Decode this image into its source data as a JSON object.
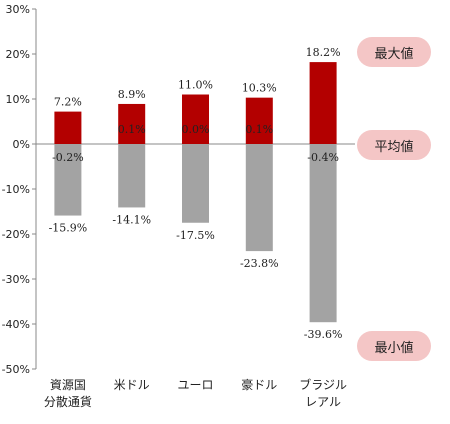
{
  "chart_data": {
    "type": "bar",
    "categories": [
      "資源国\n分散通貨",
      "米ドル",
      "ユーロ",
      "豪ドル",
      "ブラジル\nレアル"
    ],
    "series": [
      {
        "name": "最大値",
        "values": [
          7.2,
          8.9,
          11.0,
          10.3,
          18.2
        ],
        "color": "#b30000"
      },
      {
        "name": "平均値",
        "values": [
          -0.2,
          0.1,
          0.0,
          0.1,
          -0.4
        ]
      },
      {
        "name": "最小値",
        "values": [
          -15.9,
          -14.1,
          -17.5,
          -23.8,
          -39.6
        ],
        "color": "#a3a3a3"
      }
    ],
    "max_labels": [
      "7.2%",
      "8.9%",
      "11.0%",
      "10.3%",
      "18.2%"
    ],
    "avg_labels": [
      "-0.2%",
      "0.1%",
      "0.0%",
      "0.1%",
      "-0.4%"
    ],
    "min_labels": [
      "-15.9%",
      "-14.1%",
      "-17.5%",
      "-23.8%",
      "-39.6%"
    ],
    "ylim": [
      -50,
      30
    ],
    "yticks": [
      30,
      20,
      10,
      0,
      -10,
      -20,
      -30,
      -40,
      -50
    ],
    "ytick_labels": [
      "30%",
      "20%",
      "10%",
      "0%",
      "-10%",
      "-20%",
      "-30%",
      "-40%",
      "-50%"
    ],
    "grid": false,
    "legend": {
      "max_label": "最大値",
      "avg_label": "平均値",
      "min_label": "最小値",
      "color": "#f4c6c6"
    }
  }
}
